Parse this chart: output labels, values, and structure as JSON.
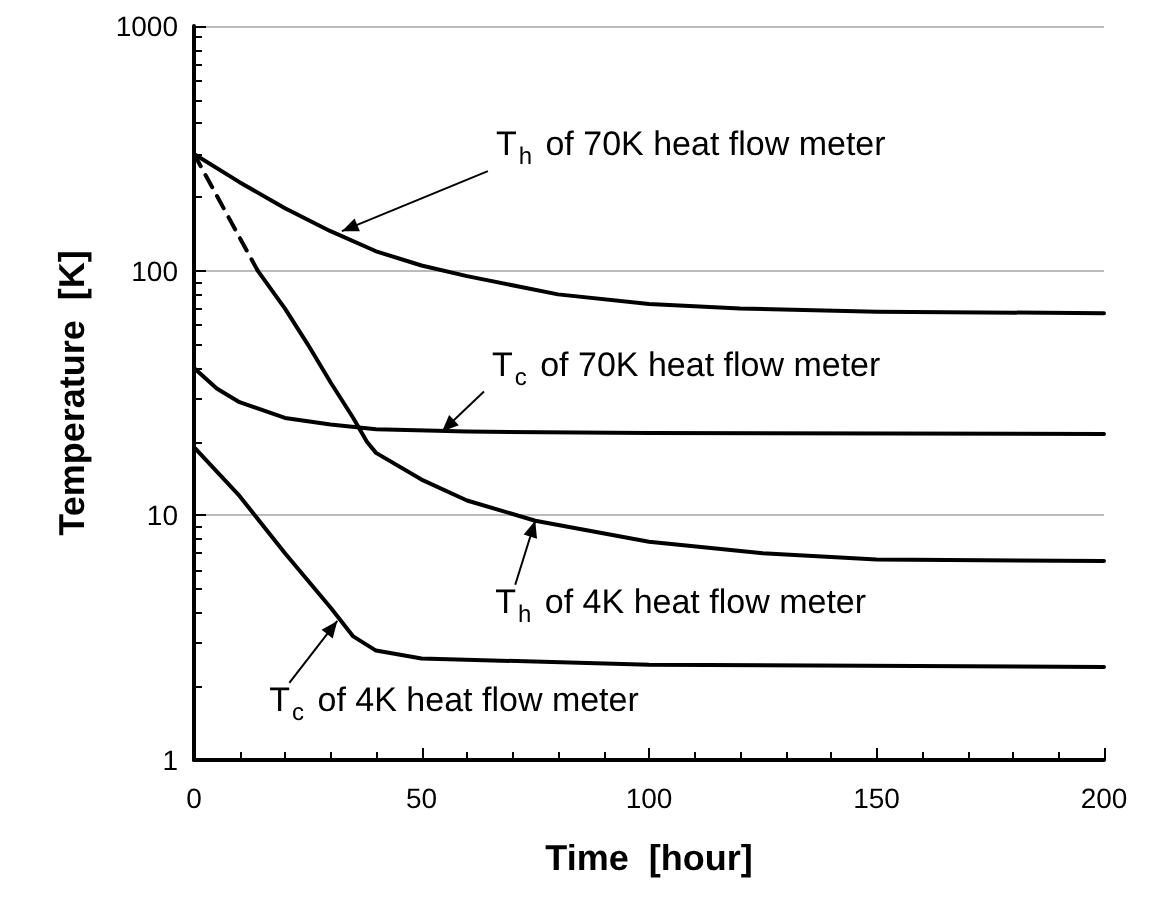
{
  "chart_data": {
    "type": "line",
    "xlabel": "Time  [hour]",
    "ylabel": "Temperature  [K]",
    "log": "y",
    "xlim": [
      0,
      200
    ],
    "xticks": [
      0,
      50,
      100,
      150,
      200
    ],
    "ylim": [
      1,
      1000
    ],
    "yticks": [
      1,
      10,
      100,
      1000
    ],
    "grid": "y",
    "marker": "none",
    "line_style": "solid",
    "series": [
      {
        "color": "#000000",
        "x": [
          0,
          10,
          20,
          30,
          40,
          50,
          60,
          80,
          100,
          120,
          150,
          200
        ],
        "values": [
          300,
          230,
          180,
          145,
          120,
          105,
          95,
          80,
          73,
          70,
          68,
          67
        ]
      },
      {
        "color": "#000000",
        "x": [
          0,
          5,
          10,
          20,
          30,
          40,
          60,
          100,
          200
        ],
        "values": [
          40,
          33,
          29,
          25,
          23.5,
          22.5,
          22,
          21.7,
          21.5
        ]
      },
      {
        "color": "#000000",
        "line_style": "dashed",
        "x": [
          0,
          14
        ],
        "values": [
          300,
          100
        ]
      },
      {
        "color": "#000000",
        "x": [
          14,
          20,
          25,
          30,
          35,
          38,
          40,
          50,
          60,
          75,
          100,
          125,
          150,
          200
        ],
        "values": [
          100,
          70,
          50,
          35,
          25,
          20,
          18,
          14,
          11.5,
          9.5,
          7.8,
          7,
          6.6,
          6.5
        ]
      },
      {
        "color": "#000000",
        "x": [
          0,
          10,
          20,
          30,
          35,
          40,
          50,
          100,
          200
        ],
        "values": [
          19,
          12,
          7,
          4.2,
          3.2,
          2.8,
          2.6,
          2.45,
          2.4
        ]
      }
    ],
    "annotations": [
      {
        "text": "T$_{h}$ of 70K heat flow meter",
        "x": 32.5,
        "y": 145
      },
      {
        "text": "T$_{c}$ of 70K heat flow meter",
        "x": 54.5,
        "y": 22
      },
      {
        "text": "T$_{h}$ of 4K heat flow meter",
        "x": 75,
        "y": 9.5
      },
      {
        "text": "T$_{c}$ of 4K heat flow meter",
        "x": 31.5,
        "y": 3.7
      }
    ]
  }
}
